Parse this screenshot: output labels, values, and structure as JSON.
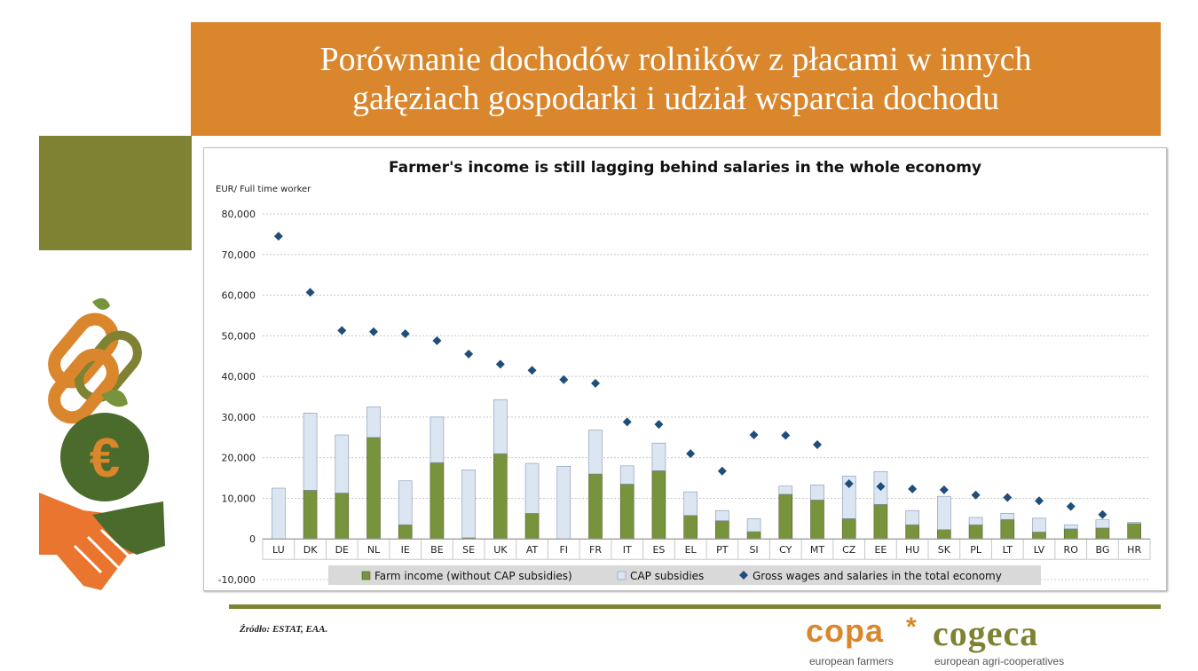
{
  "slide": {
    "title_line1": "Porównanie dochodów rolników z płacami w innych",
    "title_line2": "gałęziach gospodarki i udział wsparcia dochodu",
    "source": "Źródło: ESTAT, EAA."
  },
  "logo": {
    "word1": "copa",
    "star": "*",
    "word2": "cogeca",
    "sub1": "european farmers",
    "sub2": "european agri-cooperatives"
  },
  "colors": {
    "banner": "#d9862c",
    "olive": "#7f8232",
    "farm_income": "#77933c",
    "cap_subsidies": "#dce6f2",
    "gross_wages": "#1f4e79"
  },
  "icons": [
    "chain-link-icon",
    "euro-coin-icon",
    "handshake-icon"
  ],
  "chart_data": {
    "type": "bar",
    "title": "Farmer's income is still lagging behind salaries in the whole economy",
    "ylabel": "EUR/ Full time worker",
    "ylim": [
      -10000,
      80000
    ],
    "yticks": [
      -10000,
      0,
      10000,
      20000,
      30000,
      40000,
      50000,
      60000,
      70000,
      80000
    ],
    "ytick_labels": [
      "-10,000",
      "0",
      "10,000",
      "20,000",
      "30,000",
      "40,000",
      "50,000",
      "60,000",
      "70,000",
      "80,000"
    ],
    "grid": true,
    "legend_position": "bottom",
    "categories": [
      "LU",
      "DK",
      "DE",
      "NL",
      "IE",
      "BE",
      "SE",
      "UK",
      "AT",
      "FI",
      "FR",
      "IT",
      "ES",
      "EL",
      "PT",
      "SI",
      "CY",
      "MT",
      "CZ",
      "EE",
      "HU",
      "SK",
      "PL",
      "LT",
      "LV",
      "RO",
      "BG",
      "HR"
    ],
    "series": [
      {
        "name": "Farm income (without CAP subsidies)",
        "type": "bar",
        "stack": "income",
        "values": [
          -3000,
          12000,
          11300,
          25000,
          3500,
          18800,
          300,
          21000,
          6300,
          -2500,
          16000,
          13500,
          16800,
          5800,
          4500,
          1800,
          11000,
          9600,
          5000,
          8500,
          3500,
          2300,
          3500,
          4800,
          1700,
          2500,
          2700,
          3800
        ]
      },
      {
        "name": "CAP subsidies",
        "type": "bar",
        "stack": "income",
        "values": [
          12500,
          19000,
          14300,
          7500,
          10800,
          11200,
          16700,
          13300,
          12300,
          17900,
          10800,
          4500,
          6800,
          5800,
          2500,
          3200,
          2000,
          3700,
          10500,
          8100,
          3500,
          8200,
          1800,
          1500,
          3400,
          1000,
          2000,
          300
        ]
      },
      {
        "name": "Gross wages and salaries in the total economy",
        "type": "scatter",
        "values": [
          74500,
          60700,
          51300,
          51000,
          50500,
          48800,
          45500,
          43000,
          41500,
          39200,
          38300,
          28800,
          28200,
          21000,
          16700,
          25600,
          25500,
          23200,
          13600,
          12900,
          12300,
          12100,
          10800,
          10200,
          9400,
          8000,
          6000,
          null
        ]
      }
    ]
  }
}
